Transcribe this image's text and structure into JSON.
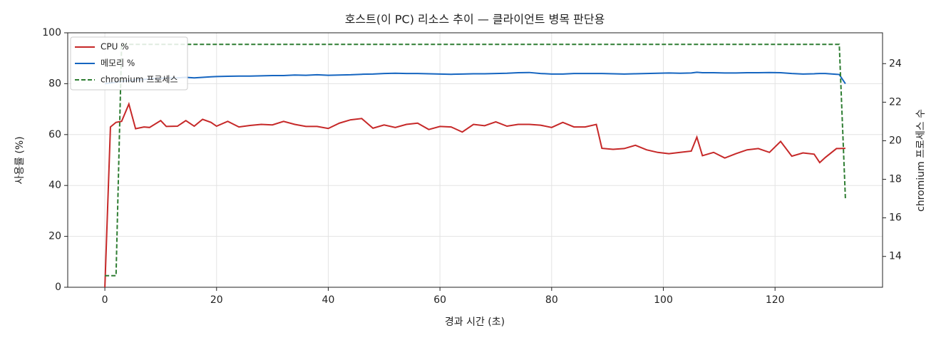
{
  "chart_data": {
    "type": "line",
    "title": "호스트(이 PC) 리소스 추이 — 클라이언트 병목 판단용",
    "x_label": "경과 시간 (초)",
    "y_label": "사용률 (%)",
    "y2_label": "chromium 프로세스 수",
    "x": [
      0,
      1,
      2,
      3,
      4.3,
      5.5,
      7,
      8,
      10,
      11,
      13,
      14.5,
      16,
      17.5,
      19,
      20,
      22,
      24,
      26,
      28,
      30,
      32,
      34,
      36,
      38,
      40,
      42,
      44,
      46,
      48,
      50,
      52,
      54,
      56,
      58,
      60,
      62,
      64,
      66,
      68,
      70,
      72,
      74,
      76,
      78,
      80,
      82,
      84,
      86,
      88,
      89,
      91,
      93,
      95,
      97,
      99,
      101,
      103,
      105,
      106,
      107,
      109,
      111,
      113,
      115,
      117,
      119,
      121,
      123,
      125,
      127,
      128,
      129,
      131,
      131.5,
      132.6
    ],
    "series": [
      {
        "name": "CPU %",
        "color": "#c62828",
        "linestyle": "solid",
        "values": [
          0,
          63,
          64.8,
          65.2,
          72,
          62.3,
          63,
          62.8,
          65.5,
          63.2,
          63.3,
          65.5,
          63.3,
          66,
          64.8,
          63.3,
          65.2,
          63,
          63.6,
          64,
          63.8,
          65.2,
          64,
          63.2,
          63.2,
          62.4,
          64.5,
          65.8,
          66.3,
          62.5,
          63.8,
          62.8,
          64,
          64.5,
          62,
          63.2,
          63,
          61,
          64,
          63.5,
          65,
          63.3,
          64,
          64,
          63.7,
          62.8,
          64.8,
          63,
          63,
          64,
          54.6,
          54.2,
          54.5,
          55.8,
          54,
          53,
          52.5,
          53,
          53.5,
          59,
          51.7,
          53,
          50.8,
          52.5,
          54,
          54.5,
          53,
          57.3,
          51.5,
          52.8,
          52.3,
          49,
          51,
          54.5,
          54.5,
          54.6
        ]
      },
      {
        "name": "메모리 %",
        "color": "#1565c0",
        "linestyle": "solid",
        "values": [
          80,
          80.3,
          80.6,
          80.9,
          81.2,
          81.5,
          81.7,
          81.9,
          82.1,
          82.2,
          82.3,
          82.5,
          82.3,
          82.5,
          82.7,
          82.8,
          82.9,
          83,
          83,
          83.1,
          83.2,
          83.2,
          83.4,
          83.3,
          83.5,
          83.3,
          83.4,
          83.5,
          83.7,
          83.8,
          84,
          84.1,
          84,
          84,
          83.9,
          83.8,
          83.7,
          83.8,
          83.9,
          83.9,
          84,
          84.1,
          84.3,
          84.4,
          84,
          83.8,
          83.8,
          84,
          84,
          84,
          84,
          83.9,
          83.8,
          83.9,
          84,
          84.1,
          84.2,
          84.1,
          84.2,
          84.5,
          84.3,
          84.3,
          84.2,
          84.2,
          84.3,
          84.3,
          84.4,
          84.3,
          84,
          83.8,
          83.9,
          84,
          84,
          83.7,
          83.6,
          80
        ]
      },
      {
        "name": "chromium 프로세스",
        "color": "#2e7d32",
        "linestyle": "dashed",
        "axis": "y2",
        "values": [
          13,
          13,
          13,
          25,
          25,
          25,
          25,
          25,
          25,
          25,
          25,
          25,
          25,
          25,
          25,
          25,
          25,
          25,
          25,
          25,
          25,
          25,
          25,
          25,
          25,
          25,
          25,
          25,
          25,
          25,
          25,
          25,
          25,
          25,
          25,
          25,
          25,
          25,
          25,
          25,
          25,
          25,
          25,
          25,
          25,
          25,
          25,
          25,
          25,
          25,
          25,
          25,
          25,
          25,
          25,
          25,
          25,
          25,
          25,
          25,
          25,
          25,
          25,
          25,
          25,
          25,
          25,
          25,
          25,
          25,
          25,
          25,
          25,
          25,
          25,
          17
        ]
      }
    ],
    "xlim": [
      -6.65,
      139.25
    ],
    "xticks": [
      0,
      20,
      40,
      60,
      80,
      100,
      120
    ],
    "ylim": [
      0,
      100
    ],
    "yticks": [
      0,
      20,
      40,
      60,
      80,
      100
    ],
    "y2lim": [
      12.4,
      25.6
    ],
    "y2ticks": [
      14,
      16,
      18,
      20,
      22,
      24
    ],
    "grid": true,
    "legend": "upper left"
  }
}
